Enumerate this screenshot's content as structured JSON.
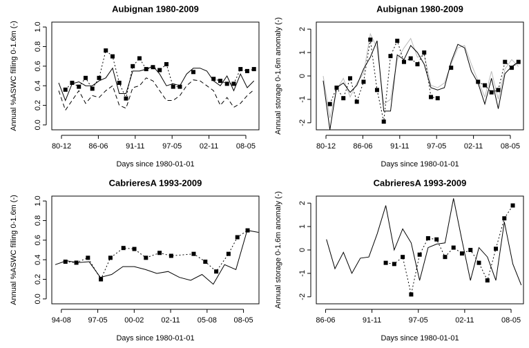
{
  "chart_data": [
    {
      "type": "line",
      "title": "Aubignan 1980-2009",
      "xlabel": "Days since 1980-01-01",
      "ylabel": "Annual %ASWC filling 0-1.6m (-)",
      "xlim": [
        -190,
        11047
      ],
      "ylim": [
        -0.05,
        1.05
      ],
      "xticks": [
        {
          "value": 335,
          "label": "80-12"
        },
        {
          "value": 2335,
          "label": "86-06"
        },
        {
          "value": 4335,
          "label": "91-11"
        },
        {
          "value": 6335,
          "label": "97-05"
        },
        {
          "value": 8335,
          "label": "02-11"
        },
        {
          "value": 10335,
          "label": "08-05"
        }
      ],
      "yticks": [
        {
          "value": 0,
          "label": "0.0"
        },
        0.2,
        0.4,
        0.6,
        0.8,
        {
          "value": 1,
          "label": "1.0"
        }
      ],
      "series": [
        {
          "color": "#000000",
          "dash": "solid",
          "marker": "none",
          "x": [
            183,
            548,
            913,
            1279,
            1644,
            2009,
            2374,
            2740,
            3105,
            3470,
            3835,
            4201,
            4566,
            4931,
            5296,
            5662,
            6027,
            6392,
            6757,
            7123,
            7488,
            7853,
            8218,
            8584,
            8949,
            9314,
            9679,
            10045,
            10410,
            10775
          ],
          "values": [
            0.43,
            0.25,
            0.42,
            0.44,
            0.4,
            0.4,
            0.45,
            0.48,
            0.58,
            0.32,
            0.32,
            0.55,
            0.55,
            0.57,
            0.6,
            0.52,
            0.4,
            0.42,
            0.4,
            0.52,
            0.58,
            0.58,
            0.55,
            0.45,
            0.4,
            0.5,
            0.35,
            0.52,
            0.38,
            0.45
          ]
        },
        {
          "color": "#000000",
          "dash": "dashed",
          "marker": "none",
          "x": [
            183,
            548,
            913,
            1279,
            1644,
            2009,
            2374,
            2740,
            3105,
            3470,
            3835,
            4201,
            4566,
            4931,
            5296,
            5662,
            6027,
            6392,
            6757,
            7123,
            7488,
            7853,
            8218,
            8584,
            8949,
            9314,
            9679,
            10045,
            10410,
            10775
          ],
          "values": [
            0.35,
            0.15,
            0.25,
            0.35,
            0.22,
            0.3,
            0.28,
            0.35,
            0.4,
            0.2,
            0.17,
            0.38,
            0.4,
            0.48,
            0.45,
            0.35,
            0.25,
            0.25,
            0.3,
            0.4,
            0.46,
            0.45,
            0.4,
            0.35,
            0.2,
            0.28,
            0.18,
            0.22,
            0.3,
            0.36
          ]
        },
        {
          "color": "#000000",
          "dash": "dotted",
          "marker": "square",
          "x": [
            548,
            913,
            1279,
            1644,
            2009,
            2374,
            2740,
            3105,
            3470,
            3835,
            4201,
            4566,
            4931,
            5296,
            5662,
            6027,
            6392,
            6757,
            7123,
            7488,
            7853,
            8218,
            8584,
            8949,
            9314,
            9679,
            10045,
            10410,
            10775
          ],
          "values": [
            0.36,
            0.43,
            0.39,
            0.48,
            0.37,
            0.48,
            0.76,
            0.7,
            0.43,
            0.27,
            0.6,
            0.68,
            0.57,
            0.59,
            0.56,
            0.62,
            0.39,
            0.39,
            null,
            0.54,
            null,
            null,
            0.47,
            0.45,
            0.42,
            0.42,
            0.57,
            0.55,
            0.57
          ]
        }
      ]
    },
    {
      "type": "line",
      "title": "Aubignan 1980-2009",
      "xlabel": "Days since 1980-01-01",
      "ylabel": "Annual storage 0-1.6m anomaly (-)",
      "xlim": [
        -190,
        11047
      ],
      "ylim": [
        -2.3,
        2.3
      ],
      "xticks": [
        {
          "value": 335,
          "label": "80-12"
        },
        {
          "value": 2335,
          "label": "86-06"
        },
        {
          "value": 4335,
          "label": "91-11"
        },
        {
          "value": 6335,
          "label": "97-05"
        },
        {
          "value": 8335,
          "label": "02-11"
        },
        {
          "value": 10335,
          "label": "08-05"
        }
      ],
      "yticks": [
        -2,
        -1,
        0,
        1,
        2
      ],
      "series": [
        {
          "color": "#bbbbbb",
          "dash": "solid",
          "marker": "none",
          "x": [
            183,
            548,
            913,
            1279,
            1644,
            2009,
            2374,
            2740,
            3105,
            3470,
            3835,
            4201,
            4566,
            4931,
            5296,
            5662,
            6027,
            6392,
            6757,
            7123,
            7488,
            7853,
            8218,
            8584,
            8949,
            9314,
            9679,
            10045,
            10410,
            10775
          ],
          "values": [
            0.0,
            -1.8,
            -0.6,
            -0.1,
            -0.9,
            -0.3,
            0.1,
            1.8,
            1.2,
            -1.2,
            -1.0,
            0.7,
            1.2,
            1.6,
            0.8,
            0.9,
            -0.4,
            -0.5,
            -0.3,
            0.5,
            1.2,
            1.3,
            0.5,
            -0.2,
            -0.9,
            0.2,
            -1.0,
            0.3,
            0.7,
            0.4
          ]
        },
        {
          "color": "#000000",
          "dash": "solid",
          "marker": "none",
          "x": [
            183,
            548,
            913,
            1279,
            1644,
            2009,
            2374,
            2740,
            3105,
            3470,
            3835,
            4201,
            4566,
            4931,
            5296,
            5662,
            6027,
            6392,
            6757,
            7123,
            7488,
            7853,
            8218,
            8584,
            8949,
            9314,
            9679,
            10045,
            10410,
            10775
          ],
          "values": [
            -0.2,
            -2.3,
            -0.5,
            -0.3,
            -0.7,
            -0.4,
            0.3,
            0.8,
            1.5,
            -1.5,
            -1.5,
            0.9,
            0.7,
            1.3,
            1.0,
            0.5,
            -0.5,
            -0.6,
            -0.5,
            0.6,
            1.35,
            1.2,
            0.2,
            -0.3,
            -1.2,
            -0.1,
            -1.4,
            0.1,
            0.4,
            0.6
          ]
        },
        {
          "color": "#000000",
          "dash": "dotted",
          "marker": "square",
          "x": [
            548,
            913,
            1279,
            1644,
            2009,
            2374,
            2740,
            3105,
            3470,
            3835,
            4201,
            4566,
            4931,
            5296,
            5662,
            6027,
            6392,
            6757,
            7123,
            7488,
            7853,
            8218,
            8584,
            8949,
            9314,
            9679,
            10045,
            10410,
            10775
          ],
          "values": [
            -1.2,
            -0.5,
            -0.95,
            -0.1,
            -1.1,
            -0.25,
            1.55,
            -0.6,
            -1.95,
            0.85,
            1.5,
            0.6,
            0.75,
            0.5,
            1.0,
            -0.9,
            -0.95,
            null,
            0.35,
            null,
            null,
            null,
            -0.25,
            -0.4,
            -0.7,
            -0.6,
            0.6,
            0.35,
            0.6
          ]
        }
      ]
    },
    {
      "type": "line",
      "title": "CabrieresA 1993-2009",
      "xlabel": "Days since 1980-01-01",
      "ylabel": "Annual %ASWC filling 0-1.6m (-)",
      "xlim": [
        5073,
        10760
      ],
      "ylim": [
        -0.05,
        1.05
      ],
      "xticks": [
        {
          "value": 5335,
          "label": "94-08"
        },
        {
          "value": 6335,
          "label": "97-05"
        },
        {
          "value": 7335,
          "label": "00-02"
        },
        {
          "value": 8335,
          "label": "02-11"
        },
        {
          "value": 9335,
          "label": "05-08"
        },
        {
          "value": 10335,
          "label": "08-05"
        }
      ],
      "yticks": [
        {
          "value": 0,
          "label": "0.0"
        },
        0.2,
        0.4,
        0.6,
        0.8,
        {
          "value": 1,
          "label": "1.0"
        }
      ],
      "series": [
        {
          "color": "#000000",
          "dash": "solid",
          "marker": "none",
          "x": [
            5166,
            5476,
            5786,
            6096,
            6406,
            6716,
            7026,
            7336,
            7646,
            7956,
            8266,
            8576,
            8886,
            9196,
            9506,
            9816,
            10126,
            10436,
            10746
          ],
          "values": [
            0.35,
            0.39,
            0.37,
            0.38,
            0.22,
            0.25,
            0.33,
            0.33,
            0.3,
            0.26,
            0.28,
            0.22,
            0.19,
            0.25,
            0.15,
            0.35,
            0.3,
            0.7,
            0.68
          ]
        },
        {
          "color": "#000000",
          "dash": "dotted",
          "marker": "square",
          "x": [
            5447,
            5747,
            6065,
            6421,
            6683,
            7039,
            7339,
            7657,
            8032,
            8350,
            8968,
            9287,
            9587,
            9924,
            10167,
            10448
          ],
          "values": [
            0.38,
            0.37,
            0.42,
            0.2,
            0.42,
            0.52,
            0.51,
            0.42,
            0.47,
            0.44,
            0.46,
            0.38,
            0.28,
            0.46,
            0.63,
            0.7
          ]
        }
      ]
    },
    {
      "type": "line",
      "title": "CabrieresA 1993-2009",
      "xlabel": "Days since 1980-01-01",
      "ylabel": "Annual storage 0-1.6m anomaly (-)",
      "xlim": [
        1935,
        10870
      ],
      "ylim": [
        -2.3,
        2.3
      ],
      "xticks": [
        {
          "value": 2335,
          "label": "86-06"
        },
        {
          "value": 4335,
          "label": "91-11"
        },
        {
          "value": 6335,
          "label": "97-05"
        },
        {
          "value": 8335,
          "label": "02-11"
        },
        {
          "value": 10335,
          "label": "08-05"
        }
      ],
      "yticks": [
        -2,
        -1,
        0,
        1,
        2
      ],
      "series": [
        {
          "color": "#000000",
          "dash": "solid",
          "marker": "none",
          "x": [
            2374,
            2740,
            3105,
            3470,
            3835,
            4201,
            4566,
            4931,
            5296,
            5662,
            6027,
            6392,
            6757,
            7123,
            7488,
            7853,
            8218,
            8584,
            8949,
            9314,
            9679,
            10045,
            10410,
            10775
          ],
          "values": [
            0.45,
            -0.8,
            -0.1,
            -1.0,
            -0.35,
            -0.3,
            0.7,
            1.9,
            0.0,
            0.9,
            0.3,
            -1.3,
            0.1,
            0.25,
            0.3,
            2.2,
            0.4,
            -1.3,
            0.1,
            -0.3,
            -1.3,
            1.2,
            -0.6,
            -1.5
          ]
        },
        {
          "color": "#000000",
          "dash": "dotted",
          "marker": "square",
          "x": [
            4931,
            5296,
            5662,
            6027,
            6392,
            6757,
            7123,
            7488,
            7853,
            8218,
            8584,
            8949,
            9314,
            9679,
            10045,
            10410
          ],
          "values": [
            -0.55,
            -0.6,
            -0.3,
            -1.9,
            -0.2,
            0.5,
            0.45,
            -0.3,
            0.1,
            -0.15,
            0.0,
            -0.55,
            -1.3,
            0.05,
            1.35,
            1.9
          ]
        }
      ]
    }
  ]
}
